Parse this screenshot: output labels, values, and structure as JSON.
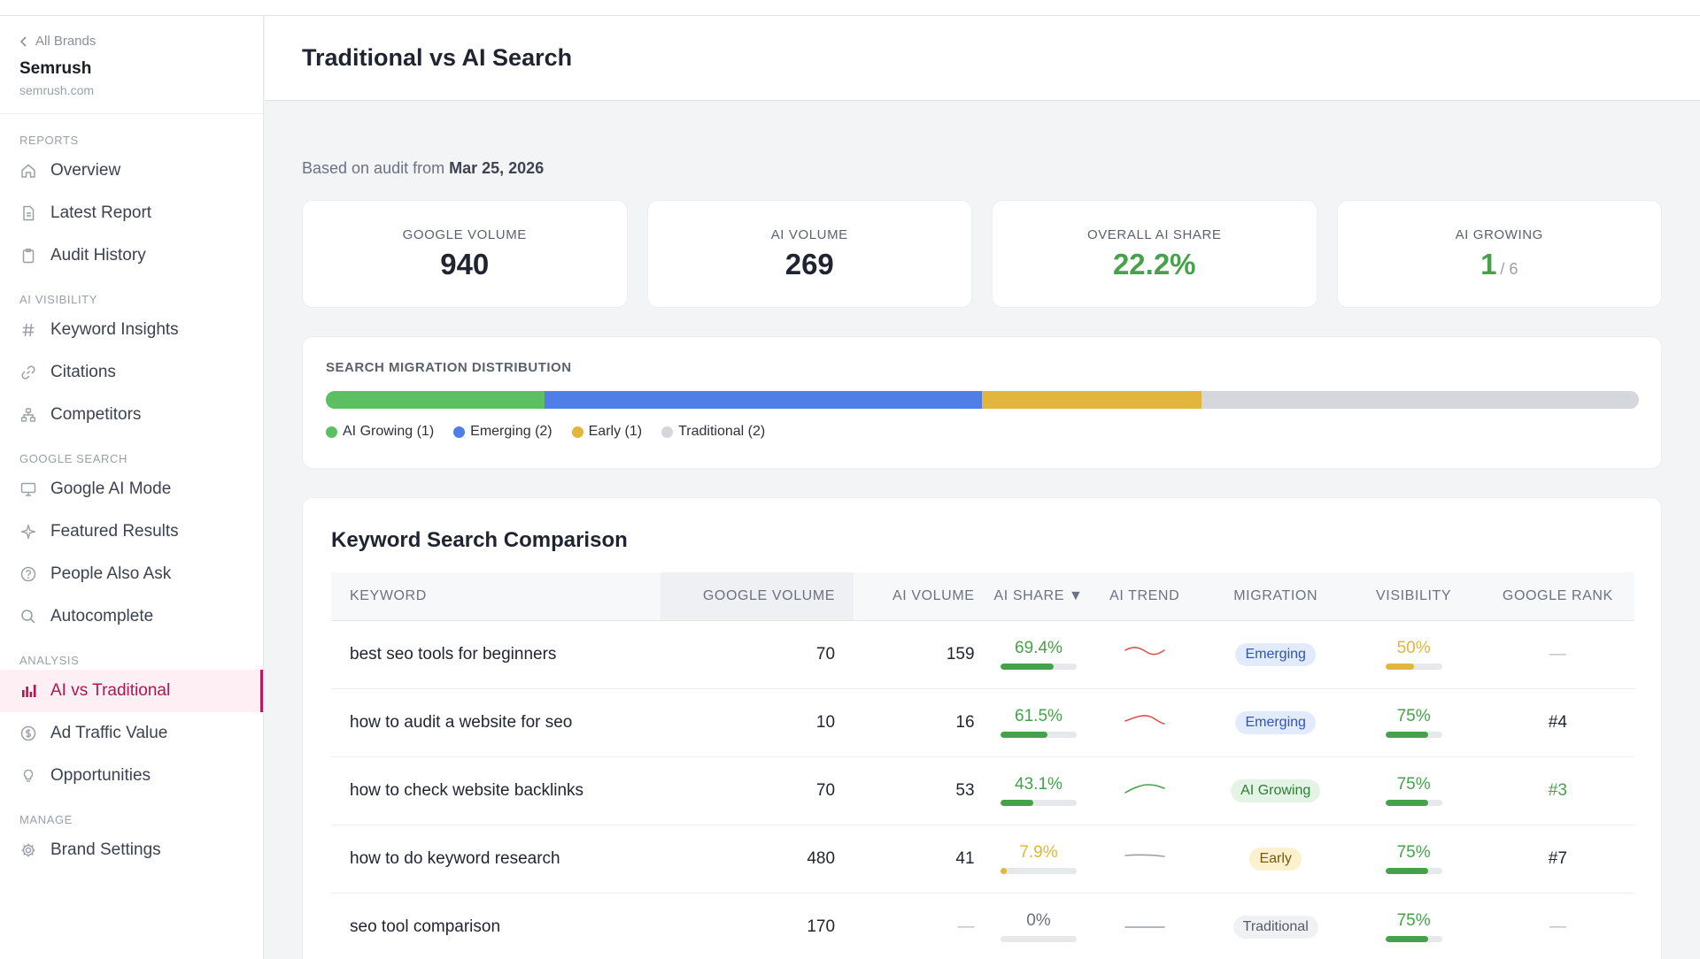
{
  "sidebar": {
    "back_label": "All Brands",
    "brand_name": "Semrush",
    "brand_domain": "semrush.com",
    "sections": [
      {
        "label": "REPORTS",
        "items": [
          {
            "label": "Overview",
            "icon": "home-icon"
          },
          {
            "label": "Latest Report",
            "icon": "document-icon"
          },
          {
            "label": "Audit History",
            "icon": "clipboard-icon"
          }
        ]
      },
      {
        "label": "AI VISIBILITY",
        "items": [
          {
            "label": "Keyword Insights",
            "icon": "hash-icon"
          },
          {
            "label": "Citations",
            "icon": "link-icon"
          },
          {
            "label": "Competitors",
            "icon": "competitors-icon"
          }
        ]
      },
      {
        "label": "GOOGLE SEARCH",
        "items": [
          {
            "label": "Google AI Mode",
            "icon": "monitor-icon"
          },
          {
            "label": "Featured Results",
            "icon": "sparkle-icon"
          },
          {
            "label": "People Also Ask",
            "icon": "question-icon"
          },
          {
            "label": "Autocomplete",
            "icon": "search-icon"
          }
        ]
      },
      {
        "label": "ANALYSIS",
        "items": [
          {
            "label": "AI vs Traditional",
            "icon": "bar-chart-icon",
            "active": true
          },
          {
            "label": "Ad Traffic Value",
            "icon": "dollar-icon"
          },
          {
            "label": "Opportunities",
            "icon": "lightbulb-icon"
          }
        ]
      },
      {
        "label": "MANAGE",
        "items": [
          {
            "label": "Brand Settings",
            "icon": "gear-icon"
          }
        ]
      }
    ]
  },
  "header": {
    "title": "Traditional vs AI Search"
  },
  "audit": {
    "prefix": "Based on audit from",
    "date": "Mar 25, 2026"
  },
  "stats": [
    {
      "label": "GOOGLE VOLUME",
      "value": "940"
    },
    {
      "label": "AI VOLUME",
      "value": "269"
    },
    {
      "label": "OVERALL AI SHARE",
      "value": "22.2%"
    },
    {
      "label": "AI GROWING",
      "value": "1",
      "of": "/ 6"
    }
  ],
  "distribution": {
    "title": "SEARCH MIGRATION DISTRIBUTION",
    "segments": [
      {
        "label": "AI Growing (1)",
        "count": 1,
        "color": "#5cbf62"
      },
      {
        "label": "Emerging (2)",
        "count": 2,
        "color": "#4f7fe6"
      },
      {
        "label": "Early (1)",
        "count": 1,
        "color": "#e2b53d"
      },
      {
        "label": "Traditional (2)",
        "count": 2,
        "color": "#d5d7dc"
      }
    ],
    "total": 6
  },
  "table": {
    "title": "Keyword Search Comparison",
    "columns": [
      "KEYWORD",
      "GOOGLE VOLUME",
      "AI VOLUME",
      "AI SHARE ▼",
      "AI TREND",
      "MIGRATION",
      "VISIBILITY",
      "GOOGLE RANK"
    ],
    "rows": [
      {
        "keyword": "best seo tools for beginners",
        "google_volume": "70",
        "ai_volume": "159",
        "ai_share": "69.4%",
        "ai_share_pct": 69.4,
        "share_color": "#46a24a",
        "trend": "down-red",
        "migration": "Emerging",
        "badge": "b-emerging",
        "visibility": "50%",
        "visibility_pct": 50,
        "vis_color": "#e2b53d",
        "rank": "—",
        "rank_class": "muted"
      },
      {
        "keyword": "how to audit a website for seo",
        "google_volume": "10",
        "ai_volume": "16",
        "ai_share": "61.5%",
        "ai_share_pct": 61.5,
        "share_color": "#46a24a",
        "trend": "peak-red",
        "migration": "Emerging",
        "badge": "b-emerging",
        "visibility": "75%",
        "visibility_pct": 75,
        "vis_color": "#46a24a",
        "rank": "#4",
        "rank_class": ""
      },
      {
        "keyword": "how to check website backlinks",
        "google_volume": "70",
        "ai_volume": "53",
        "ai_share": "43.1%",
        "ai_share_pct": 43.1,
        "share_color": "#46a24a",
        "trend": "up-green",
        "migration": "AI Growing",
        "badge": "b-growing",
        "visibility": "75%",
        "visibility_pct": 75,
        "vis_color": "#46a24a",
        "rank": "#3",
        "rank_class": "green-t"
      },
      {
        "keyword": "how to do keyword research",
        "google_volume": "480",
        "ai_volume": "41",
        "ai_share": "7.9%",
        "ai_share_pct": 7.9,
        "share_color": "#e2b53d",
        "trend": "flat-gray",
        "migration": "Early",
        "badge": "b-early",
        "visibility": "75%",
        "visibility_pct": 75,
        "vis_color": "#46a24a",
        "rank": "#7",
        "rank_class": ""
      },
      {
        "keyword": "seo tool comparison",
        "google_volume": "170",
        "ai_volume": "—",
        "ai_share": "0%",
        "ai_share_pct": 0,
        "share_color": "#6b7280",
        "trend": "flat-gray2",
        "migration": "Traditional",
        "badge": "b-traditional",
        "visibility": "75%",
        "visibility_pct": 75,
        "vis_color": "#46a24a",
        "rank": "—",
        "rank_class": "muted"
      }
    ]
  }
}
